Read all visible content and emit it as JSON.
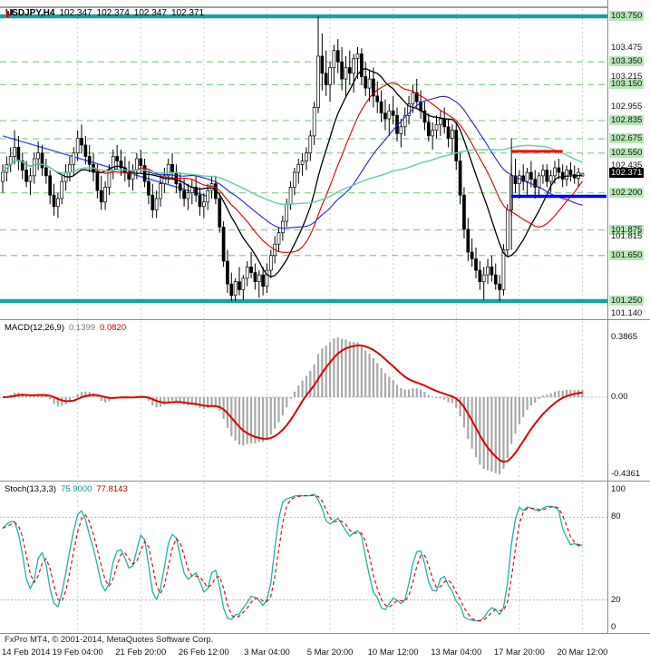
{
  "header": {
    "symbol_period": "USDJPY,H4",
    "open": "102.347",
    "high": "102.374",
    "low": "102.347",
    "close": "102.371"
  },
  "footer": {
    "credit": "FxPro MT4, © 2001-2014, MetaQuotes Software Corp."
  },
  "macd_panel": {
    "title": "MACD(12,26,9)",
    "value_main": "0.1399",
    "value_signal": "0.0820",
    "scale_labels": [
      {
        "text": "0.3865",
        "value": 0.3865
      },
      {
        "text": "0.00",
        "value": 0
      },
      {
        "text": "-0.4361",
        "value": -0.4361
      }
    ]
  },
  "stoch_panel": {
    "title": "Stoch(13,3,3)",
    "value_main": "75.9000",
    "value_signal": "77.8143",
    "scale_labels": [
      {
        "text": "100",
        "value": 100
      },
      {
        "text": "80",
        "value": 80
      },
      {
        "text": "20",
        "value": 20
      },
      {
        "text": "0",
        "value": 0
      }
    ]
  },
  "time_axis": {
    "grid_bars": [
      19,
      35,
      51,
      67,
      83,
      99,
      115,
      131,
      147
    ],
    "labels": [
      {
        "text": "14 Feb 2014",
        "bar": 0
      },
      {
        "text": "19 Feb 04:00",
        "bar": 19
      },
      {
        "text": "21 Feb 20:00",
        "bar": 35
      },
      {
        "text": "26 Feb 12:00",
        "bar": 51
      },
      {
        "text": "3 Mar 04:00",
        "bar": 67
      },
      {
        "text": "5 Mar 20:00",
        "bar": 83
      },
      {
        "text": "10 Mar 12:00",
        "bar": 99
      },
      {
        "text": "13 Mar 04:00",
        "bar": 115
      },
      {
        "text": "17 Mar 20:00",
        "bar": 131
      },
      {
        "text": "20 Mar 12:00",
        "bar": 147
      }
    ]
  },
  "main_panel": {
    "price_labels": [
      {
        "text": "103.750",
        "price": 103.75,
        "style": "level"
      },
      {
        "text": "103.475",
        "price": 103.475,
        "style": "plain"
      },
      {
        "text": "103.350",
        "price": 103.35,
        "style": "level"
      },
      {
        "text": "103.215",
        "price": 103.215,
        "style": "plain"
      },
      {
        "text": "103.150",
        "price": 103.15,
        "style": "level"
      },
      {
        "text": "102.955",
        "price": 102.955,
        "style": "plain"
      },
      {
        "text": "102.835",
        "price": 102.835,
        "style": "level"
      },
      {
        "text": "102.675",
        "price": 102.675,
        "style": "level"
      },
      {
        "text": "102.550",
        "price": 102.55,
        "style": "level"
      },
      {
        "text": "102.435",
        "price": 102.435,
        "style": "plain"
      },
      {
        "text": "102.371",
        "price": 102.371,
        "style": "current"
      },
      {
        "text": "102.200",
        "price": 102.2,
        "style": "level"
      },
      {
        "text": "101.875",
        "price": 101.875,
        "style": "level"
      },
      {
        "text": "101.815",
        "price": 101.815,
        "style": "plain"
      },
      {
        "text": "101.650",
        "price": 101.65,
        "style": "level"
      },
      {
        "text": "101.250",
        "price": 101.25,
        "style": "level"
      },
      {
        "text": "101.140",
        "price": 101.14,
        "style": "plain"
      }
    ],
    "levels": [
      103.35,
      103.15,
      102.835,
      102.675,
      102.55,
      102.2,
      101.875,
      101.65
    ],
    "bands": [
      103.75,
      101.25
    ],
    "colors": {
      "level_line": "#86d086",
      "band": "#15a3a3"
    },
    "moving_averages": [
      {
        "period": 13,
        "color": "#000000",
        "width": 1.3
      },
      {
        "period": 21,
        "color": "#d40000",
        "width": 1.1
      },
      {
        "period": 34,
        "color": "#2626cc",
        "width": 1.1
      },
      {
        "period": 60,
        "color": "#66cdaa",
        "width": 1.4
      }
    ],
    "annotations": {
      "trendline": {
        "from_bar": 0,
        "from_price": 102.7,
        "to_bar": 52,
        "to_price": 102.17,
        "color": "#3a58d8"
      },
      "vline": {
        "bar": 129,
        "from_price": 102.68,
        "to_price": 101.7,
        "color": "#111111"
      },
      "resistance": {
        "from_bar": 129,
        "to_bar": 142,
        "price": 102.565,
        "color": "#ff0000"
      },
      "support": {
        "from_bar": 129,
        "price": 102.17,
        "color": "#0000ff"
      }
    }
  },
  "chart_data": {
    "type": "candlestick",
    "symbol": "USDJPY",
    "timeframe": "H4",
    "title": "USDJPY,H4 102.347 102.374 102.347 102.371",
    "price_axis": {
      "max": 103.75,
      "min": 101.25
    },
    "candles": [
      [
        102.3,
        102.45,
        102.2,
        102.38
      ],
      [
        102.38,
        102.52,
        102.3,
        102.45
      ],
      [
        102.45,
        102.6,
        102.38,
        102.52
      ],
      [
        102.52,
        102.75,
        102.45,
        102.6
      ],
      [
        102.6,
        102.7,
        102.4,
        102.48
      ],
      [
        102.48,
        102.55,
        102.32,
        102.4
      ],
      [
        102.4,
        102.48,
        102.25,
        102.3
      ],
      [
        102.3,
        102.42,
        102.18,
        102.35
      ],
      [
        102.35,
        102.55,
        102.28,
        102.5
      ],
      [
        102.5,
        102.65,
        102.4,
        102.55
      ],
      [
        102.55,
        102.62,
        102.35,
        102.42
      ],
      [
        102.42,
        102.5,
        102.28,
        102.35
      ],
      [
        102.35,
        102.4,
        102.1,
        102.18
      ],
      [
        102.18,
        102.28,
        102.0,
        102.08
      ],
      [
        102.08,
        102.2,
        101.98,
        102.15
      ],
      [
        102.15,
        102.35,
        102.1,
        102.3
      ],
      [
        102.3,
        102.45,
        102.22,
        102.38
      ],
      [
        102.38,
        102.52,
        102.3,
        102.45
      ],
      [
        102.45,
        102.6,
        102.35,
        102.55
      ],
      [
        102.55,
        102.75,
        102.48,
        102.68
      ],
      [
        102.68,
        102.8,
        102.55,
        102.62
      ],
      [
        102.62,
        102.7,
        102.45,
        102.52
      ],
      [
        102.52,
        102.62,
        102.38,
        102.45
      ],
      [
        102.45,
        102.55,
        102.3,
        102.38
      ],
      [
        102.38,
        102.45,
        102.15,
        102.22
      ],
      [
        102.22,
        102.35,
        102.05,
        102.12
      ],
      [
        102.12,
        102.3,
        102.05,
        102.25
      ],
      [
        102.25,
        102.45,
        102.18,
        102.4
      ],
      [
        102.4,
        102.58,
        102.32,
        102.52
      ],
      [
        102.52,
        102.62,
        102.4,
        102.48
      ],
      [
        102.48,
        102.58,
        102.35,
        102.42
      ],
      [
        102.42,
        102.52,
        102.3,
        102.38
      ],
      [
        102.38,
        102.48,
        102.25,
        102.32
      ],
      [
        102.32,
        102.45,
        102.22,
        102.4
      ],
      [
        102.4,
        102.55,
        102.32,
        102.5
      ],
      [
        102.5,
        102.58,
        102.38,
        102.44
      ],
      [
        102.44,
        102.5,
        102.25,
        102.3
      ],
      [
        102.3,
        102.38,
        102.1,
        102.18
      ],
      [
        102.18,
        102.28,
        101.98,
        102.05
      ],
      [
        102.05,
        102.22,
        101.98,
        102.15
      ],
      [
        102.15,
        102.35,
        102.08,
        102.28
      ],
      [
        102.28,
        102.42,
        102.2,
        102.35
      ],
      [
        102.35,
        102.5,
        102.28,
        102.45
      ],
      [
        102.45,
        102.55,
        102.32,
        102.38
      ],
      [
        102.38,
        102.45,
        102.2,
        102.28
      ],
      [
        102.28,
        102.38,
        102.15,
        102.22
      ],
      [
        102.22,
        102.32,
        102.08,
        102.15
      ],
      [
        102.15,
        102.28,
        102.05,
        102.2
      ],
      [
        102.2,
        102.32,
        102.1,
        102.25
      ],
      [
        102.25,
        102.35,
        102.12,
        102.18
      ],
      [
        102.18,
        102.25,
        102.0,
        102.08
      ],
      [
        102.08,
        102.2,
        101.98,
        102.12
      ],
      [
        102.12,
        102.28,
        102.05,
        102.22
      ],
      [
        102.22,
        102.35,
        102.15,
        102.28
      ],
      [
        102.28,
        102.35,
        102.1,
        102.15
      ],
      [
        102.15,
        102.2,
        101.85,
        101.9
      ],
      [
        101.9,
        101.95,
        101.55,
        101.6
      ],
      [
        101.6,
        101.7,
        101.32,
        101.4
      ],
      [
        101.4,
        101.5,
        101.25,
        101.3
      ],
      [
        101.3,
        101.45,
        101.25,
        101.42
      ],
      [
        101.42,
        101.55,
        101.3,
        101.35
      ],
      [
        101.35,
        101.48,
        101.26,
        101.45
      ],
      [
        101.45,
        101.6,
        101.38,
        101.55
      ],
      [
        101.55,
        101.68,
        101.45,
        101.5
      ],
      [
        101.5,
        101.58,
        101.35,
        101.42
      ],
      [
        101.42,
        101.52,
        101.28,
        101.48
      ],
      [
        101.48,
        101.55,
        101.3,
        101.38
      ],
      [
        101.38,
        101.58,
        101.32,
        101.52
      ],
      [
        101.52,
        101.7,
        101.45,
        101.65
      ],
      [
        101.65,
        101.82,
        101.58,
        101.75
      ],
      [
        101.75,
        101.9,
        101.68,
        101.85
      ],
      [
        101.85,
        102.0,
        101.78,
        101.95
      ],
      [
        101.95,
        102.15,
        101.9,
        102.1
      ],
      [
        102.1,
        102.3,
        102.05,
        102.25
      ],
      [
        102.25,
        102.42,
        102.18,
        102.38
      ],
      [
        102.38,
        102.5,
        102.28,
        102.45
      ],
      [
        102.45,
        102.55,
        102.35,
        102.48
      ],
      [
        102.48,
        102.6,
        102.4,
        102.55
      ],
      [
        102.55,
        102.75,
        102.48,
        102.7
      ],
      [
        102.7,
        103.0,
        102.62,
        102.95
      ],
      [
        102.95,
        103.75,
        102.9,
        103.4
      ],
      [
        103.4,
        103.6,
        103.1,
        103.25
      ],
      [
        103.25,
        103.45,
        103.05,
        103.15
      ],
      [
        103.15,
        103.35,
        103.0,
        103.3
      ],
      [
        103.3,
        103.5,
        103.15,
        103.45
      ],
      [
        103.45,
        103.55,
        103.25,
        103.35
      ],
      [
        103.35,
        103.48,
        103.1,
        103.2
      ],
      [
        103.2,
        103.4,
        103.05,
        103.3
      ],
      [
        103.3,
        103.45,
        103.15,
        103.25
      ],
      [
        103.25,
        103.42,
        103.08,
        103.38
      ],
      [
        103.38,
        103.48,
        103.2,
        103.42
      ],
      [
        103.42,
        103.47,
        103.15,
        103.22
      ],
      [
        103.22,
        103.35,
        103.05,
        103.12
      ],
      [
        103.12,
        103.28,
        103.0,
        103.2
      ],
      [
        103.2,
        103.3,
        102.95,
        103.05
      ],
      [
        103.05,
        103.18,
        102.9,
        103.0
      ],
      [
        103.0,
        103.1,
        102.82,
        102.9
      ],
      [
        102.9,
        103.02,
        102.75,
        102.85
      ],
      [
        102.85,
        102.98,
        102.7,
        102.92
      ],
      [
        102.92,
        103.05,
        102.8,
        102.88
      ],
      [
        102.88,
        102.95,
        102.65,
        102.72
      ],
      [
        102.72,
        102.85,
        102.6,
        102.78
      ],
      [
        102.78,
        102.95,
        102.7,
        102.88
      ],
      [
        102.88,
        103.05,
        102.8,
        102.98
      ],
      [
        102.98,
        103.15,
        102.9,
        103.08
      ],
      [
        103.08,
        103.2,
        102.95,
        103.0
      ],
      [
        103.0,
        103.1,
        102.85,
        102.92
      ],
      [
        102.92,
        103.0,
        102.75,
        102.82
      ],
      [
        102.82,
        102.9,
        102.65,
        102.7
      ],
      [
        102.7,
        102.82,
        102.58,
        102.75
      ],
      [
        102.75,
        102.88,
        102.68,
        102.8
      ],
      [
        102.8,
        102.92,
        102.7,
        102.85
      ],
      [
        102.85,
        102.95,
        102.72,
        102.78
      ],
      [
        102.78,
        102.85,
        102.6,
        102.68
      ],
      [
        102.68,
        102.8,
        102.55,
        102.75
      ],
      [
        102.75,
        102.82,
        102.4,
        102.48
      ],
      [
        102.48,
        102.55,
        102.1,
        102.18
      ],
      [
        102.18,
        102.25,
        101.8,
        101.88
      ],
      [
        101.88,
        101.98,
        101.6,
        101.68
      ],
      [
        101.68,
        101.8,
        101.55,
        101.62
      ],
      [
        101.62,
        101.72,
        101.45,
        101.52
      ],
      [
        101.52,
        101.6,
        101.35,
        101.42
      ],
      [
        101.42,
        101.55,
        101.26,
        101.48
      ],
      [
        101.48,
        101.62,
        101.4,
        101.55
      ],
      [
        101.55,
        101.65,
        101.42,
        101.48
      ],
      [
        101.48,
        101.58,
        101.35,
        101.4
      ],
      [
        101.4,
        101.48,
        101.25,
        101.35
      ],
      [
        101.35,
        101.75,
        101.3,
        101.7
      ],
      [
        101.7,
        102.1,
        101.65,
        102.05
      ],
      [
        102.05,
        102.45,
        102.0,
        102.35
      ],
      [
        102.35,
        102.5,
        102.2,
        102.28
      ],
      [
        102.28,
        102.4,
        102.15,
        102.35
      ],
      [
        102.35,
        102.45,
        102.22,
        102.3
      ],
      [
        102.3,
        102.42,
        102.18,
        102.38
      ],
      [
        102.38,
        102.48,
        102.25,
        102.32
      ],
      [
        102.32,
        102.4,
        102.15,
        102.25
      ],
      [
        102.25,
        102.38,
        102.18,
        102.35
      ],
      [
        102.35,
        102.45,
        102.28,
        102.4
      ],
      [
        102.4,
        102.45,
        102.25,
        102.3
      ],
      [
        102.3,
        102.4,
        102.2,
        102.35
      ],
      [
        102.35,
        102.48,
        102.28,
        102.42
      ],
      [
        102.42,
        102.5,
        102.32,
        102.38
      ],
      [
        102.38,
        102.45,
        102.25,
        102.32
      ],
      [
        102.32,
        102.44,
        102.26,
        102.4
      ],
      [
        102.4,
        102.47,
        102.3,
        102.36
      ],
      [
        102.36,
        102.44,
        102.28,
        102.33
      ],
      [
        102.33,
        102.42,
        102.25,
        102.38
      ],
      [
        102.347,
        102.374,
        102.347,
        102.371
      ]
    ],
    "indicators": [
      {
        "name": "MACD",
        "params": [
          12,
          26,
          9
        ],
        "display_max": 0.3865,
        "display_min": -0.4361,
        "current_values": [
          0.1399,
          0.082
        ],
        "color_hist": "#a9a9a9",
        "color_signal": "#dd0000"
      },
      {
        "name": "Stochastic",
        "params": [
          13,
          3,
          3
        ],
        "range": [
          0,
          100
        ],
        "levels": [
          80,
          20
        ],
        "current_values": [
          75.9,
          77.8143
        ],
        "color_main": "#20b2aa",
        "color_signal": "#d40000"
      }
    ]
  }
}
